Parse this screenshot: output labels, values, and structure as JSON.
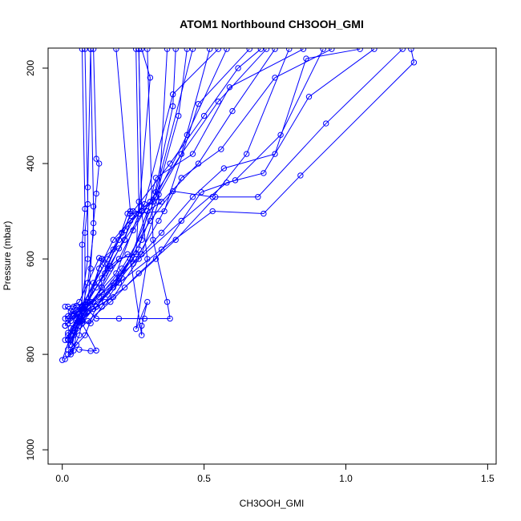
{
  "chart_data": {
    "type": "line",
    "title": "ATOM1 Northbound CH3OOH_GMI",
    "xlabel": "CH3OOH_GMI",
    "ylabel": "Pressure (mbar)",
    "xlim": [
      -0.05,
      1.53
    ],
    "ylim": [
      1030,
      158
    ],
    "y_reversed": true,
    "grid": false,
    "legend": "none",
    "x_ticks": [
      {
        "value": 0.0,
        "label": "0.0"
      },
      {
        "value": 0.5,
        "label": "0.5"
      },
      {
        "value": 1.0,
        "label": "1.0"
      },
      {
        "value": 1.5,
        "label": "1.5"
      }
    ],
    "y_ticks": [
      {
        "value": 200,
        "label": "200"
      },
      {
        "value": 400,
        "label": "400"
      },
      {
        "value": 600,
        "label": "600"
      },
      {
        "value": 800,
        "label": "800"
      },
      {
        "value": 1000,
        "label": "1000"
      }
    ],
    "color": "#0000ff",
    "series": [
      {
        "points": [
          [
            0.01,
            810
          ],
          [
            0.04,
            792
          ],
          [
            0.06,
            720
          ],
          [
            0.14,
            640
          ],
          [
            0.22,
            560
          ],
          [
            0.31,
            480
          ],
          [
            0.42,
            380
          ],
          [
            0.55,
            270
          ],
          [
            0.72,
            160
          ]
        ]
      },
      {
        "points": [
          [
            0.0,
            812
          ],
          [
            0.03,
            760
          ],
          [
            0.07,
            700
          ],
          [
            0.15,
            610
          ],
          [
            0.25,
            500
          ],
          [
            0.38,
            400
          ],
          [
            0.5,
            300
          ],
          [
            0.62,
            200
          ],
          [
            0.7,
            160
          ]
        ]
      },
      {
        "points": [
          [
            0.02,
            800
          ],
          [
            0.05,
            780
          ],
          [
            0.08,
            760
          ],
          [
            0.12,
            700
          ],
          [
            0.2,
            640
          ],
          [
            0.27,
            580
          ],
          [
            0.33,
            430
          ],
          [
            0.46,
            380
          ],
          [
            0.59,
            240
          ],
          [
            0.85,
            160
          ]
        ]
      },
      {
        "points": [
          [
            0.03,
            795
          ],
          [
            0.05,
            740
          ],
          [
            0.09,
            700
          ],
          [
            0.13,
            620
          ],
          [
            0.18,
            560
          ],
          [
            0.29,
            485
          ],
          [
            0.39,
            255
          ],
          [
            0.55,
            160
          ]
        ]
      },
      {
        "points": [
          [
            0.02,
            770
          ],
          [
            0.06,
            730
          ],
          [
            0.1,
            690
          ],
          [
            0.19,
            630
          ],
          [
            0.27,
            505
          ],
          [
            0.31,
            220
          ],
          [
            0.28,
            160
          ]
        ]
      },
      {
        "points": [
          [
            0.01,
            740
          ],
          [
            0.04,
            720
          ],
          [
            0.07,
            700
          ],
          [
            0.11,
            650
          ],
          [
            0.16,
            600
          ],
          [
            0.22,
            540
          ],
          [
            0.24,
            505
          ],
          [
            0.36,
            500
          ],
          [
            0.48,
            275
          ],
          [
            0.66,
            160
          ]
        ]
      },
      {
        "points": [
          [
            0.03,
            770
          ],
          [
            0.06,
            730
          ],
          [
            0.12,
            700
          ],
          [
            0.18,
            660
          ],
          [
            0.26,
            600
          ],
          [
            0.34,
            520
          ],
          [
            0.42,
            430
          ],
          [
            0.56,
            370
          ],
          [
            0.75,
            220
          ],
          [
            0.95,
            160
          ]
        ]
      },
      {
        "points": [
          [
            0.02,
            755
          ],
          [
            0.07,
            710
          ],
          [
            0.14,
            670
          ],
          [
            0.25,
            610
          ],
          [
            0.35,
            545
          ],
          [
            0.46,
            470
          ],
          [
            0.57,
            410
          ],
          [
            0.75,
            380
          ],
          [
            0.86,
            180
          ],
          [
            1.05,
            160
          ]
        ]
      },
      {
        "points": [
          [
            0.04,
            760
          ],
          [
            0.09,
            730
          ],
          [
            0.17,
            690
          ],
          [
            0.27,
            630
          ],
          [
            0.4,
            560
          ],
          [
            0.54,
            470
          ],
          [
            0.69,
            470
          ],
          [
            0.93,
            316
          ],
          [
            1.2,
            160
          ]
        ]
      },
      {
        "points": [
          [
            0.02,
            760
          ],
          [
            0.08,
            710
          ],
          [
            0.2,
            650
          ],
          [
            0.35,
            580
          ],
          [
            0.53,
            500
          ],
          [
            0.71,
            505
          ],
          [
            0.84,
            425
          ],
          [
            1.24,
            188
          ],
          [
            1.23,
            160
          ]
        ]
      },
      {
        "points": [
          [
            0.03,
            780
          ],
          [
            0.06,
            740
          ],
          [
            0.11,
            705
          ],
          [
            0.18,
            680
          ],
          [
            0.27,
            600
          ],
          [
            0.42,
            520
          ],
          [
            0.58,
            440
          ],
          [
            0.71,
            420
          ],
          [
            0.87,
            260
          ],
          [
            1.1,
            160
          ]
        ]
      },
      {
        "points": [
          [
            0.01,
            770
          ],
          [
            0.05,
            735
          ],
          [
            0.09,
            710
          ],
          [
            0.15,
            690
          ],
          [
            0.22,
            660
          ],
          [
            0.33,
            600
          ],
          [
            0.49,
            460
          ],
          [
            0.61,
            435
          ],
          [
            0.77,
            340
          ],
          [
            0.92,
            160
          ]
        ]
      },
      {
        "points": [
          [
            0.02,
            735
          ],
          [
            0.06,
            715
          ],
          [
            0.13,
            680
          ],
          [
            0.21,
            620
          ],
          [
            0.31,
            520
          ],
          [
            0.39,
            458
          ],
          [
            0.53,
            470
          ],
          [
            0.65,
            380
          ],
          [
            0.8,
            160
          ]
        ]
      },
      {
        "points": [
          [
            0.03,
            745
          ],
          [
            0.08,
            712
          ],
          [
            0.16,
            675
          ],
          [
            0.24,
            600
          ],
          [
            0.3,
            500
          ],
          [
            0.35,
            480
          ],
          [
            0.48,
            400
          ],
          [
            0.6,
            290
          ],
          [
            0.75,
            160
          ]
        ]
      },
      {
        "points": [
          [
            0.04,
            715
          ],
          [
            0.07,
            702
          ],
          [
            0.12,
            660
          ],
          [
            0.17,
            615
          ],
          [
            0.26,
            505
          ],
          [
            0.33,
            470
          ],
          [
            0.44,
            340
          ],
          [
            0.58,
            160
          ]
        ]
      },
      {
        "points": [
          [
            0.02,
            725
          ],
          [
            0.05,
            706
          ],
          [
            0.1,
            690
          ],
          [
            0.19,
            650
          ],
          [
            0.28,
            560
          ],
          [
            0.34,
            465
          ],
          [
            0.42,
            380
          ],
          [
            0.52,
            160
          ]
        ]
      },
      {
        "points": [
          [
            0.06,
            790
          ],
          [
            0.1,
            793
          ],
          [
            0.12,
            792
          ],
          [
            0.07,
            735
          ],
          [
            0.09,
            700
          ],
          [
            0.1,
            620
          ],
          [
            0.11,
            525
          ],
          [
            0.12,
            463
          ],
          [
            0.13,
            400
          ],
          [
            0.12,
            390
          ],
          [
            0.11,
            160
          ]
        ]
      },
      {
        "points": [
          [
            0.03,
            800
          ],
          [
            0.06,
            760
          ],
          [
            0.08,
            700
          ],
          [
            0.08,
            545
          ],
          [
            0.09,
            485
          ],
          [
            0.08,
            160
          ]
        ]
      },
      {
        "points": [
          [
            0.02,
            790
          ],
          [
            0.05,
            740
          ],
          [
            0.07,
            700
          ],
          [
            0.07,
            570
          ],
          [
            0.08,
            495
          ],
          [
            0.07,
            160
          ]
        ]
      },
      {
        "points": [
          [
            0.03,
            780
          ],
          [
            0.06,
            725
          ],
          [
            0.09,
            600
          ],
          [
            0.09,
            450
          ],
          [
            0.1,
            160
          ]
        ]
      },
      {
        "points": [
          [
            0.04,
            745
          ],
          [
            0.07,
            705
          ],
          [
            0.09,
            650
          ],
          [
            0.11,
            545
          ],
          [
            0.11,
            490
          ],
          [
            0.1,
            160
          ]
        ]
      },
      {
        "points": [
          [
            0.02,
            768
          ],
          [
            0.05,
            725
          ],
          [
            0.08,
            695
          ],
          [
            0.13,
            650
          ],
          [
            0.2,
            560
          ],
          [
            0.23,
            505
          ],
          [
            0.24,
            500
          ],
          [
            0.19,
            160
          ]
        ]
      },
      {
        "points": [
          [
            0.01,
            740
          ],
          [
            0.04,
            718
          ],
          [
            0.09,
            700
          ],
          [
            0.14,
            660
          ],
          [
            0.2,
            600
          ],
          [
            0.26,
            590
          ],
          [
            0.27,
            480
          ],
          [
            0.26,
            160
          ]
        ]
      },
      {
        "points": [
          [
            0.03,
            760
          ],
          [
            0.05,
            725
          ],
          [
            0.09,
            690
          ],
          [
            0.15,
            630
          ],
          [
            0.21,
            545
          ],
          [
            0.27,
            505
          ],
          [
            0.28,
            490
          ],
          [
            0.27,
            160
          ]
        ]
      },
      {
        "points": [
          [
            0.04,
            750
          ],
          [
            0.07,
            728
          ],
          [
            0.12,
            700
          ],
          [
            0.18,
            650
          ],
          [
            0.24,
            600
          ],
          [
            0.28,
            760
          ],
          [
            0.28,
            740
          ],
          [
            0.3,
            690
          ],
          [
            0.26,
            747
          ],
          [
            0.3,
            600
          ],
          [
            0.28,
            500
          ],
          [
            0.27,
            160
          ]
        ]
      },
      {
        "points": [
          [
            0.01,
            725
          ],
          [
            0.04,
            710
          ],
          [
            0.08,
            700
          ],
          [
            0.12,
            725
          ],
          [
            0.2,
            725
          ],
          [
            0.29,
            725
          ],
          [
            0.38,
            725
          ],
          [
            0.37,
            690
          ],
          [
            0.32,
            560
          ],
          [
            0.3,
            160
          ]
        ]
      },
      {
        "points": [
          [
            0.02,
            700
          ],
          [
            0.05,
            698
          ],
          [
            0.09,
            690
          ],
          [
            0.14,
            600
          ],
          [
            0.18,
            580
          ],
          [
            0.2,
            578
          ],
          [
            0.22,
            560
          ],
          [
            0.24,
            520
          ],
          [
            0.32,
            480
          ],
          [
            0.39,
            280
          ],
          [
            0.4,
            160
          ]
        ]
      },
      {
        "points": [
          [
            0.01,
            700
          ],
          [
            0.03,
            710
          ],
          [
            0.07,
            730
          ],
          [
            0.1,
            735
          ],
          [
            0.14,
            700
          ],
          [
            0.21,
            640
          ],
          [
            0.33,
            470
          ],
          [
            0.41,
            300
          ],
          [
            0.44,
            160
          ]
        ]
      },
      {
        "points": [
          [
            0.02,
            720
          ],
          [
            0.04,
            700
          ],
          [
            0.06,
            690
          ],
          [
            0.13,
            598
          ],
          [
            0.14,
            600
          ],
          [
            0.16,
            620
          ],
          [
            0.2,
            600
          ],
          [
            0.25,
            540
          ],
          [
            0.33,
            460
          ],
          [
            0.46,
            160
          ]
        ]
      },
      {
        "points": [
          [
            0.03,
            730
          ],
          [
            0.06,
            715
          ],
          [
            0.11,
            690
          ],
          [
            0.17,
            620
          ],
          [
            0.23,
            590
          ],
          [
            0.28,
            590
          ],
          [
            0.34,
            480
          ],
          [
            0.37,
            160
          ]
        ]
      }
    ]
  }
}
